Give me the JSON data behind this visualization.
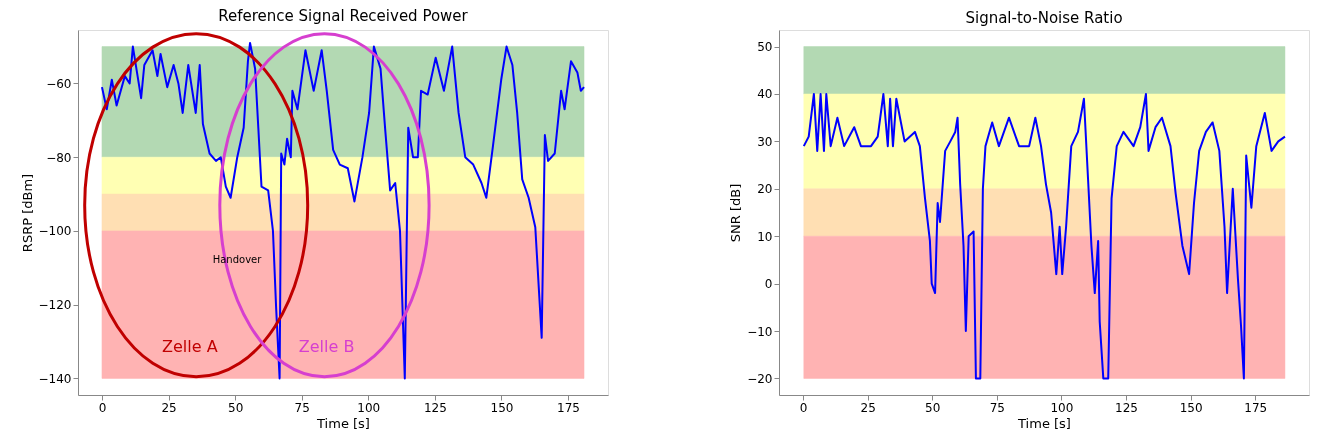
{
  "chart_data": [
    {
      "type": "line",
      "title": "Reference Signal Received Power",
      "xlabel": "Time [s]",
      "ylabel": "RSRP [dBm]",
      "xlim": [
        -9,
        190
      ],
      "xticks": [
        0,
        25,
        50,
        75,
        100,
        125,
        150,
        175
      ],
      "ylim": [
        -144.5,
        -45.5
      ],
      "yticks": [
        -60,
        -80,
        -100,
        -120,
        -140
      ],
      "grid": false,
      "line_style": "solid",
      "marker": "none",
      "bands": [
        {
          "axis": "y",
          "from": -80,
          "to": -50,
          "color": "#b3d9b3"
        },
        {
          "axis": "y",
          "from": -90,
          "to": -80,
          "color": "#ffffb3"
        },
        {
          "axis": "y",
          "from": -100,
          "to": -90,
          "color": "#ffdfb3"
        },
        {
          "axis": "y",
          "from": -140,
          "to": -100,
          "color": "#ffb3b3"
        }
      ],
      "annotations": [
        "Zelle A",
        "Zelle B",
        "Handover"
      ],
      "series": [
        {
          "color": "#0000ff",
          "x": [
            0,
            1.8,
            3.7,
            5.5,
            8.6,
            10.4,
            11.6,
            14.7,
            15.9,
            19,
            20.8,
            22,
            24.5,
            26.9,
            28.7,
            30.3,
            32.4,
            35.2,
            36.7,
            37.9,
            40.4,
            42.8,
            44.6,
            46.5,
            48.3,
            50.8,
            53.2,
            54.8,
            55.6,
            57.5,
            58.7,
            59.9,
            62.4,
            64.2,
            65.4,
            66.7,
            67.3,
            68.5,
            69.5,
            70.9,
            71.5,
            73.4,
            76.4,
            79.5,
            82.5,
            84.4,
            86.8,
            89.3,
            92.3,
            94.8,
            97.8,
            100.3,
            102.1,
            104.6,
            106.4,
            108.2,
            110.1,
            111.9,
            113.7,
            115,
            116.8,
            118.6,
            119.8,
            122.3,
            125.3,
            128.4,
            131.5,
            133.9,
            136.4,
            139.4,
            142.5,
            144.3,
            146.8,
            149.9,
            151.9,
            154.1,
            155.9,
            157.8,
            160.2,
            162.7,
            165.1,
            166.3,
            167.5,
            170,
            172.4,
            173.7,
            176.1,
            178.5,
            179.8,
            181
          ],
          "values": [
            -61,
            -67,
            -59,
            -66,
            -58,
            -60,
            -50,
            -64,
            -55,
            -51,
            -58,
            -52,
            -61,
            -55,
            -60,
            -68,
            -55,
            -68,
            -55,
            -71,
            -79,
            -81,
            -80,
            -88,
            -91,
            -80,
            -72,
            -54,
            -49,
            -56,
            -72,
            -88,
            -89,
            -100,
            -121,
            -140,
            -79,
            -82,
            -75,
            -80,
            -62,
            -67,
            -51,
            -62,
            -51,
            -62,
            -78,
            -82,
            -83,
            -92,
            -80,
            -68,
            -50,
            -56,
            -73,
            -89,
            -87,
            -100,
            -140,
            -72,
            -80,
            -80,
            -62,
            -63,
            -53,
            -62,
            -50,
            -68,
            -80,
            -82,
            -87,
            -91,
            -77,
            -59,
            -50,
            -55,
            -68,
            -86,
            -91,
            -99,
            -129,
            -74,
            -81,
            -79,
            -62,
            -67,
            -54,
            -57,
            -62,
            -61
          ]
        }
      ]
    },
    {
      "type": "line",
      "title": "Signal-to-Noise Ratio",
      "xlabel": "Time [s]",
      "ylabel": "SNR [dB]",
      "xlim": [
        -9.3,
        195.8
      ],
      "xticks": [
        0,
        25,
        50,
        75,
        100,
        125,
        150,
        175
      ],
      "ylim": [
        -23.5,
        53.5
      ],
      "yticks": [
        -20,
        -10,
        0,
        10,
        20,
        30,
        40,
        50
      ],
      "grid": false,
      "line_style": "solid",
      "marker": "none",
      "bands": [
        {
          "axis": "y",
          "from": 40,
          "to": 50,
          "color": "#b3d9b3"
        },
        {
          "axis": "y",
          "from": 20,
          "to": 40,
          "color": "#ffffb3"
        },
        {
          "axis": "y",
          "from": 10,
          "to": 20,
          "color": "#ffdfb3"
        },
        {
          "axis": "y",
          "from": -20,
          "to": 10,
          "color": "#ffb3b3"
        }
      ],
      "series": [
        {
          "color": "#0000ff",
          "x": [
            0.3,
            2.2,
            4.2,
            5.5,
            6.8,
            8.1,
            9,
            10.7,
            13.3,
            15.9,
            19.8,
            22.4,
            26.3,
            28.9,
            31.1,
            32.8,
            33.7,
            34.8,
            36.1,
            39.3,
            43.3,
            45.2,
            47.2,
            49.1,
            49.8,
            51.1,
            52.1,
            53,
            55,
            57,
            58.9,
            59.8,
            60.8,
            62.1,
            63,
            64.1,
            66,
            66.9,
            68.6,
            69.6,
            70.6,
            73.2,
            75.8,
            79.7,
            83.6,
            87.5,
            89.9,
            92.1,
            94,
            96,
            98,
            99.3,
            100.3,
            101.8,
            103.8,
            106.4,
            108.7,
            110.3,
            111.6,
            112.9,
            114.2,
            114.8,
            116.2,
            118.1,
            119.4,
            121.4,
            124,
            127.9,
            130.5,
            132.7,
            133.7,
            136.4,
            138.9,
            142.2,
            144.2,
            146.8,
            149.4,
            151.3,
            153.3,
            155.9,
            158.5,
            161.1,
            163.1,
            164.1,
            166.3,
            168.3,
            169.5,
            170.6,
            171.5,
            173.5,
            175.4,
            178.7,
            181.3,
            183.9,
            186.5
          ],
          "values": [
            29,
            31,
            40,
            28,
            40,
            28,
            40,
            29,
            35,
            29,
            33,
            29,
            29,
            31,
            40,
            29,
            39,
            29,
            39,
            30,
            32,
            29,
            18,
            9,
            0,
            -2,
            17,
            13,
            28,
            30,
            32,
            35,
            21,
            8,
            -10,
            10,
            11,
            -20,
            -20,
            20,
            29,
            34,
            29,
            35,
            29,
            29,
            35,
            29,
            21,
            15,
            2,
            12,
            2,
            12,
            29,
            32,
            39,
            22,
            8,
            -2,
            9,
            -8,
            -20,
            -20,
            18,
            29,
            32,
            29,
            33,
            40,
            28,
            33,
            35,
            29,
            19,
            8,
            2,
            17,
            28,
            32,
            34,
            28,
            12,
            -2,
            20,
            1,
            -9,
            -20,
            27,
            16,
            29,
            36,
            28,
            30,
            31
          ]
        }
      ]
    }
  ]
}
